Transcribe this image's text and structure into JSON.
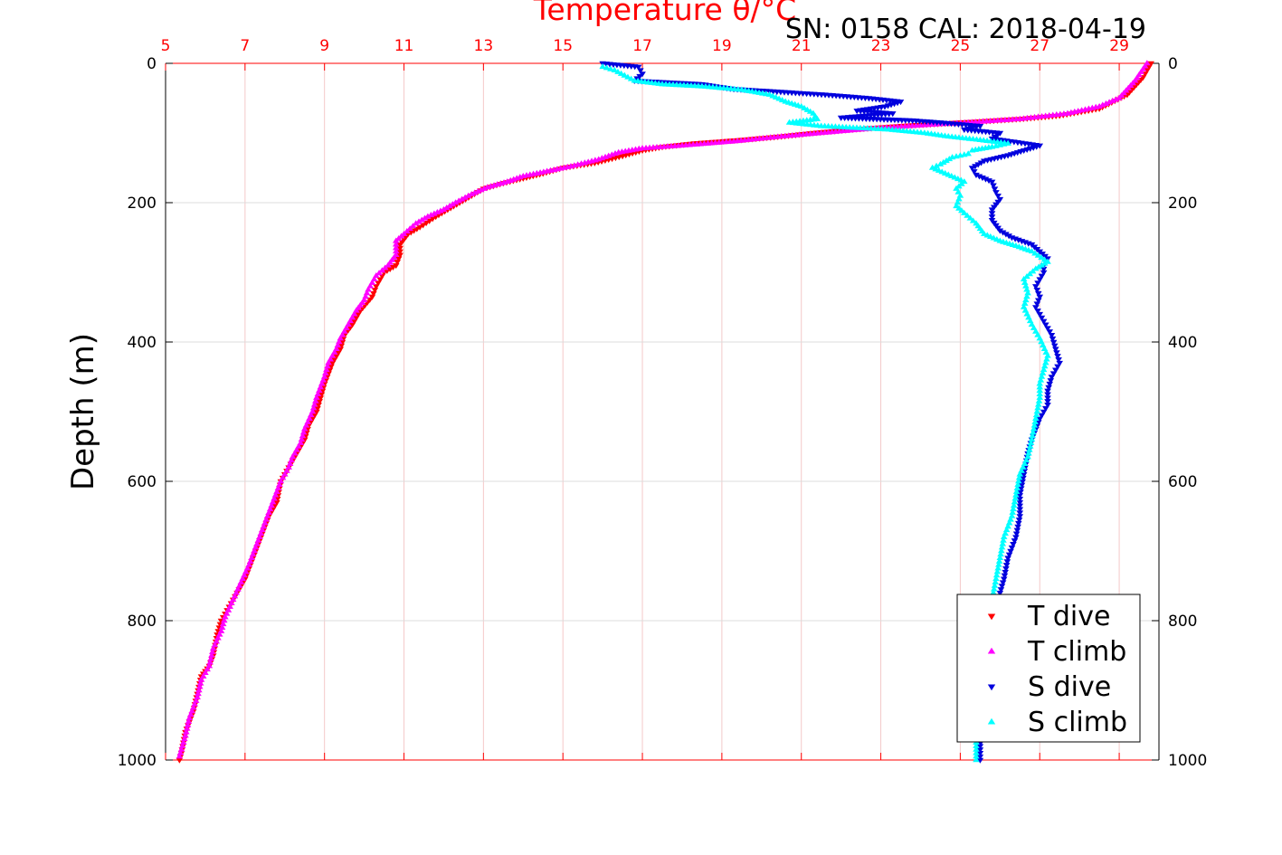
{
  "chart_data": {
    "type": "scatter",
    "title": "Temperature θ/°C",
    "subtitle": "SN: 0158  CAL: 2018-04-19",
    "ylabel": "Depth (m)",
    "xlabel": "",
    "xlim": [
      5,
      30
    ],
    "ylim": [
      0,
      1000
    ],
    "x_ticks": [
      5,
      7,
      9,
      11,
      13,
      15,
      17,
      19,
      21,
      23,
      25,
      27,
      29
    ],
    "y_ticks": [
      0,
      200,
      400,
      600,
      800,
      1000
    ],
    "y_inverted": true,
    "grid": true,
    "legend_position": "bottom-right",
    "series": [
      {
        "name": "T dive",
        "color": "#ff0000",
        "marker": "triangle-down",
        "points": [
          [
            29.8,
            0
          ],
          [
            29.6,
            20
          ],
          [
            29.2,
            45
          ],
          [
            28.5,
            65
          ],
          [
            27.5,
            75
          ],
          [
            26.5,
            80
          ],
          [
            25.0,
            85
          ],
          [
            23.5,
            90
          ],
          [
            22.3,
            95
          ],
          [
            21.3,
            100
          ],
          [
            20.5,
            105
          ],
          [
            19.5,
            110
          ],
          [
            18.3,
            115
          ],
          [
            17.5,
            120
          ],
          [
            17.0,
            125
          ],
          [
            16.5,
            133
          ],
          [
            15.8,
            143
          ],
          [
            15.0,
            150
          ],
          [
            14.5,
            158
          ],
          [
            14.0,
            165
          ],
          [
            13.5,
            172
          ],
          [
            13.0,
            180
          ],
          [
            12.7,
            190
          ],
          [
            12.4,
            200
          ],
          [
            12.1,
            210
          ],
          [
            11.8,
            220
          ],
          [
            11.4,
            235
          ],
          [
            11.1,
            245
          ],
          [
            10.9,
            260
          ],
          [
            10.9,
            275
          ],
          [
            10.8,
            290
          ],
          [
            10.5,
            300
          ],
          [
            10.3,
            320
          ],
          [
            10.2,
            335
          ],
          [
            9.9,
            355
          ],
          [
            9.7,
            375
          ],
          [
            9.5,
            390
          ],
          [
            9.4,
            410
          ],
          [
            9.2,
            430
          ],
          [
            9.0,
            460
          ],
          [
            8.9,
            480
          ],
          [
            8.8,
            500
          ],
          [
            8.6,
            520
          ],
          [
            8.5,
            540
          ],
          [
            8.3,
            560
          ],
          [
            8.1,
            580
          ],
          [
            7.9,
            600
          ],
          [
            7.8,
            630
          ],
          [
            7.6,
            650
          ],
          [
            7.4,
            680
          ],
          [
            7.2,
            710
          ],
          [
            7.0,
            740
          ],
          [
            6.8,
            760
          ],
          [
            6.6,
            780
          ],
          [
            6.4,
            800
          ],
          [
            6.3,
            820
          ],
          [
            6.2,
            850
          ],
          [
            6.1,
            865
          ],
          [
            5.9,
            880
          ],
          [
            5.7,
            930
          ],
          [
            5.5,
            960
          ],
          [
            5.4,
            990
          ],
          [
            5.35,
            1000
          ]
        ]
      },
      {
        "name": "T climb",
        "color": "#ff00ff",
        "marker": "triangle-up",
        "points": [
          [
            29.7,
            0
          ],
          [
            29.4,
            25
          ],
          [
            29.0,
            50
          ],
          [
            28.5,
            62
          ],
          [
            27.7,
            72
          ],
          [
            26.5,
            80
          ],
          [
            25.2,
            85
          ],
          [
            23.7,
            90
          ],
          [
            22.5,
            95
          ],
          [
            21.5,
            100
          ],
          [
            20.5,
            105
          ],
          [
            19.3,
            112
          ],
          [
            18.0,
            118
          ],
          [
            17.0,
            122
          ],
          [
            16.4,
            128
          ],
          [
            15.9,
            138
          ],
          [
            15.2,
            148
          ],
          [
            14.6,
            155
          ],
          [
            14.0,
            162
          ],
          [
            13.6,
            170
          ],
          [
            13.1,
            178
          ],
          [
            12.7,
            188
          ],
          [
            12.3,
            200
          ],
          [
            12.0,
            210
          ],
          [
            11.6,
            220
          ],
          [
            11.3,
            230
          ],
          [
            11.0,
            245
          ],
          [
            10.8,
            255
          ],
          [
            10.8,
            275
          ],
          [
            10.6,
            290
          ],
          [
            10.3,
            305
          ],
          [
            10.1,
            325
          ],
          [
            10.0,
            340
          ],
          [
            9.8,
            355
          ],
          [
            9.6,
            375
          ],
          [
            9.4,
            395
          ],
          [
            9.3,
            410
          ],
          [
            9.1,
            430
          ],
          [
            9.0,
            450
          ],
          [
            8.8,
            480
          ],
          [
            8.7,
            500
          ],
          [
            8.5,
            525
          ],
          [
            8.4,
            545
          ],
          [
            8.2,
            565
          ],
          [
            8.1,
            580
          ],
          [
            7.9,
            600
          ],
          [
            7.7,
            630
          ],
          [
            7.5,
            660
          ],
          [
            7.3,
            690
          ],
          [
            7.1,
            720
          ],
          [
            6.9,
            745
          ],
          [
            6.7,
            770
          ],
          [
            6.5,
            795
          ],
          [
            6.4,
            815
          ],
          [
            6.2,
            840
          ],
          [
            6.1,
            865
          ],
          [
            5.9,
            885
          ],
          [
            5.8,
            910
          ],
          [
            5.6,
            940
          ],
          [
            5.5,
            965
          ],
          [
            5.35,
            995
          ]
        ]
      },
      {
        "name": "S dive",
        "color": "#0000dd",
        "marker": "triangle-down",
        "points": [
          [
            16.0,
            0
          ],
          [
            16.9,
            5
          ],
          [
            17.0,
            15
          ],
          [
            16.8,
            25
          ],
          [
            18.5,
            30
          ],
          [
            19.3,
            37
          ],
          [
            20.2,
            40
          ],
          [
            21.6,
            45
          ],
          [
            22.7,
            50
          ],
          [
            23.5,
            55
          ],
          [
            23.1,
            62
          ],
          [
            22.4,
            68
          ],
          [
            23.3,
            72
          ],
          [
            22.0,
            78
          ],
          [
            23.8,
            82
          ],
          [
            24.5,
            85
          ],
          [
            25.5,
            90
          ],
          [
            25.1,
            95
          ],
          [
            26.0,
            100
          ],
          [
            25.8,
            108
          ],
          [
            27.0,
            118
          ],
          [
            26.6,
            125
          ],
          [
            26.2,
            132
          ],
          [
            25.6,
            140
          ],
          [
            25.3,
            150
          ],
          [
            25.4,
            160
          ],
          [
            25.8,
            170
          ],
          [
            25.9,
            185
          ],
          [
            26.0,
            195
          ],
          [
            25.8,
            210
          ],
          [
            25.8,
            225
          ],
          [
            26.0,
            240
          ],
          [
            26.3,
            250
          ],
          [
            26.8,
            260
          ],
          [
            27.0,
            270
          ],
          [
            27.2,
            280
          ],
          [
            27.1,
            290
          ],
          [
            27.1,
            300
          ],
          [
            26.9,
            320
          ],
          [
            27.0,
            335
          ],
          [
            26.9,
            350
          ],
          [
            27.1,
            370
          ],
          [
            27.3,
            390
          ],
          [
            27.4,
            410
          ],
          [
            27.5,
            430
          ],
          [
            27.3,
            450
          ],
          [
            27.2,
            470
          ],
          [
            27.2,
            490
          ],
          [
            27.0,
            510
          ],
          [
            26.8,
            540
          ],
          [
            26.7,
            560
          ],
          [
            26.6,
            590
          ],
          [
            26.5,
            620
          ],
          [
            26.5,
            650
          ],
          [
            26.4,
            680
          ],
          [
            26.2,
            710
          ],
          [
            26.1,
            740
          ],
          [
            25.9,
            780
          ],
          [
            25.8,
            820
          ],
          [
            25.7,
            870
          ],
          [
            25.6,
            930
          ],
          [
            25.5,
            980
          ],
          [
            25.5,
            1000
          ]
        ]
      },
      {
        "name": "S climb",
        "color": "#00ffff",
        "marker": "triangle-up",
        "points": [
          [
            16.0,
            5
          ],
          [
            16.3,
            10
          ],
          [
            16.8,
            25
          ],
          [
            17.5,
            30
          ],
          [
            18.5,
            33
          ],
          [
            19.5,
            38
          ],
          [
            20.2,
            45
          ],
          [
            20.6,
            55
          ],
          [
            21.0,
            62
          ],
          [
            21.3,
            72
          ],
          [
            21.4,
            80
          ],
          [
            20.7,
            85
          ],
          [
            21.5,
            90
          ],
          [
            23.2,
            95
          ],
          [
            24.1,
            100
          ],
          [
            24.7,
            105
          ],
          [
            25.5,
            110
          ],
          [
            26.2,
            115
          ],
          [
            25.8,
            120
          ],
          [
            25.3,
            125
          ],
          [
            25.2,
            130
          ],
          [
            24.8,
            135
          ],
          [
            24.5,
            145
          ],
          [
            24.3,
            150
          ],
          [
            24.7,
            160
          ],
          [
            25.1,
            170
          ],
          [
            24.9,
            180
          ],
          [
            25.0,
            190
          ],
          [
            24.9,
            205
          ],
          [
            25.1,
            215
          ],
          [
            25.4,
            230
          ],
          [
            25.6,
            245
          ],
          [
            26.0,
            255
          ],
          [
            26.4,
            262
          ],
          [
            26.8,
            270
          ],
          [
            27.2,
            285
          ],
          [
            26.9,
            295
          ],
          [
            26.6,
            310
          ],
          [
            26.7,
            330
          ],
          [
            26.6,
            350
          ],
          [
            26.8,
            375
          ],
          [
            27.0,
            395
          ],
          [
            27.2,
            420
          ],
          [
            27.1,
            440
          ],
          [
            27.0,
            460
          ],
          [
            27.0,
            480
          ],
          [
            26.9,
            510
          ],
          [
            26.8,
            540
          ],
          [
            26.7,
            565
          ],
          [
            26.5,
            590
          ],
          [
            26.4,
            620
          ],
          [
            26.3,
            650
          ],
          [
            26.1,
            680
          ],
          [
            26.0,
            710
          ],
          [
            25.9,
            740
          ],
          [
            25.8,
            770
          ],
          [
            25.7,
            810
          ],
          [
            25.6,
            860
          ],
          [
            25.5,
            920
          ],
          [
            25.4,
            970
          ],
          [
            25.4,
            1000
          ]
        ]
      }
    ]
  }
}
